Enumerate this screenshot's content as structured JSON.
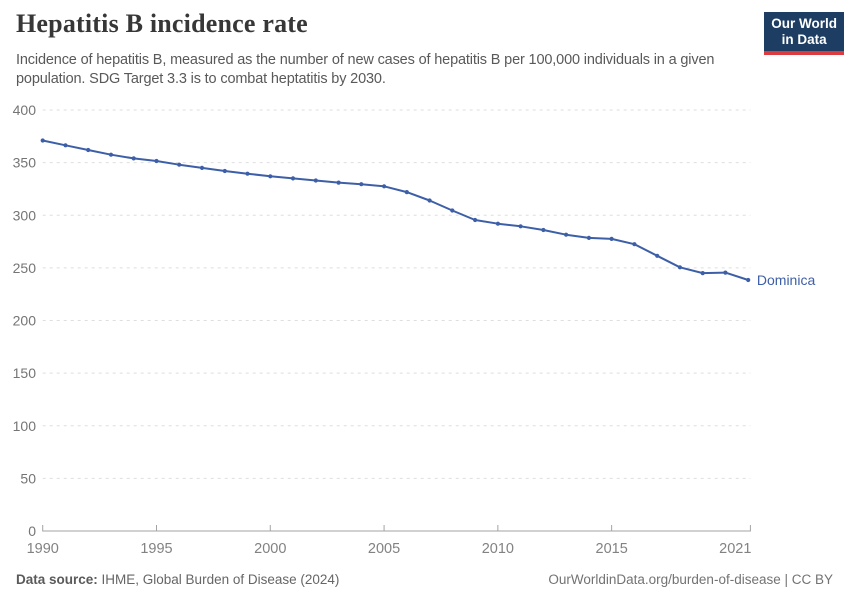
{
  "header": {
    "title": "Hepatitis B incidence rate",
    "subtitle": "Incidence of hepatitis B, measured as the number of new cases of hepatitis B per 100,000 individuals in a given population. SDG Target 3.3 is to combat heptatitis by 2030.",
    "logo": {
      "line1": "Our World",
      "line2": "in Data"
    }
  },
  "chart_data": {
    "type": "line",
    "title": "Hepatitis B incidence rate",
    "xlabel": "",
    "ylabel": "",
    "xlim": [
      1990,
      2021
    ],
    "ylim": [
      0,
      400
    ],
    "x_ticks": [
      1990,
      1995,
      2000,
      2005,
      2010,
      2015,
      2021
    ],
    "y_ticks": [
      0,
      50,
      100,
      150,
      200,
      250,
      300,
      350,
      400
    ],
    "grid": "horizontal-dashed",
    "legend_position": "end-of-line-label",
    "series": [
      {
        "name": "Dominica",
        "color": "#3d5fa8",
        "x": [
          1990,
          1991,
          1992,
          1993,
          1994,
          1995,
          1996,
          1997,
          1998,
          1999,
          2000,
          2001,
          2002,
          2003,
          2004,
          2005,
          2006,
          2007,
          2008,
          2009,
          2010,
          2011,
          2012,
          2013,
          2014,
          2015,
          2016,
          2017,
          2018,
          2019,
          2020,
          2021
        ],
        "values": [
          371,
          366.5,
          362,
          357.5,
          354,
          351.5,
          348,
          345,
          342,
          339.5,
          337,
          335,
          333,
          331,
          329.5,
          327.5,
          322,
          314,
          304.5,
          295.5,
          292,
          289.5,
          286,
          281.5,
          278.5,
          277.5,
          272.5,
          261.5,
          250.5,
          245,
          245.5,
          238.5
        ]
      }
    ]
  },
  "footer": {
    "source_label": "Data source:",
    "source_value": " IHME, Global Burden of Disease (2024)",
    "credit": "OurWorldinData.org/burden-of-disease | CC BY"
  },
  "colors": {
    "line": "#3d5fa8",
    "logo_bg": "#1d3d63",
    "logo_red": "#dc3b40",
    "grid": "#dedede",
    "axis": "#a3a3a3",
    "tick_label": "#7d7d7d"
  }
}
